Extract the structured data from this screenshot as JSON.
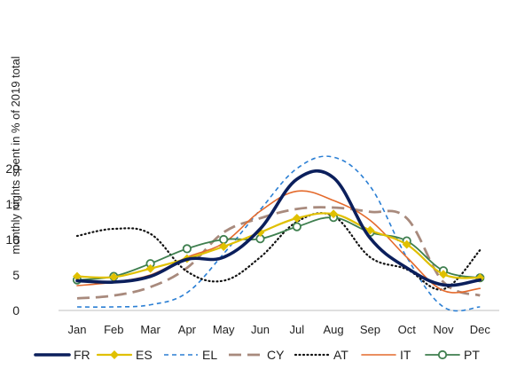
{
  "chart_data": {
    "type": "line",
    "ylabel": "monthly nights spent in % of  2019 total",
    "xlabel": "",
    "categories": [
      "Jan",
      "Feb",
      "Mar",
      "Apr",
      "May",
      "Jun",
      "Jul",
      "Aug",
      "Sep",
      "Oct",
      "Nov",
      "Dec"
    ],
    "ylim": [
      0,
      22
    ],
    "yticks": [
      0,
      5,
      10,
      15,
      20
    ],
    "grid": false,
    "legend_position": "bottom",
    "series": [
      {
        "name": "FR",
        "color": "#0b1f5c",
        "style": "solid-thick",
        "values": [
          4.2,
          4.0,
          4.8,
          7.2,
          7.5,
          11.5,
          18.5,
          18.7,
          10.2,
          6.0,
          3.6,
          4.3
        ]
      },
      {
        "name": "ES",
        "color": "#e0c000",
        "style": "solid-diamond",
        "values": [
          4.8,
          4.7,
          5.9,
          7.3,
          9.0,
          11.0,
          13.0,
          13.6,
          11.3,
          9.3,
          5.1,
          4.6
        ]
      },
      {
        "name": "EL",
        "color": "#2b7fd4",
        "style": "dashed-fine",
        "values": [
          0.5,
          0.5,
          0.8,
          2.5,
          8.0,
          14.2,
          20.0,
          21.6,
          17.5,
          7.5,
          0.5,
          0.5
        ]
      },
      {
        "name": "CY",
        "color": "#a88a7d",
        "style": "dashed-long",
        "values": [
          1.7,
          2.1,
          3.3,
          6.0,
          11.0,
          13.0,
          14.3,
          14.5,
          13.9,
          13.0,
          4.0,
          2.1
        ]
      },
      {
        "name": "AT",
        "color": "#111111",
        "style": "dotted",
        "values": [
          10.5,
          11.5,
          10.8,
          5.5,
          4.2,
          7.5,
          12.5,
          13.3,
          7.5,
          5.8,
          3.0,
          8.5
        ]
      },
      {
        "name": "IT",
        "color": "#e46a2c",
        "style": "solid-thin",
        "values": [
          3.5,
          4.0,
          5.0,
          7.5,
          9.5,
          14.0,
          16.8,
          15.5,
          12.7,
          7.5,
          2.8,
          3.1
        ]
      },
      {
        "name": "PT",
        "color": "#3f7f4f",
        "style": "solid-circle",
        "values": [
          4.3,
          4.8,
          6.6,
          8.7,
          10.0,
          10.1,
          11.8,
          13.1,
          11.0,
          9.8,
          5.6,
          4.6
        ]
      }
    ]
  }
}
